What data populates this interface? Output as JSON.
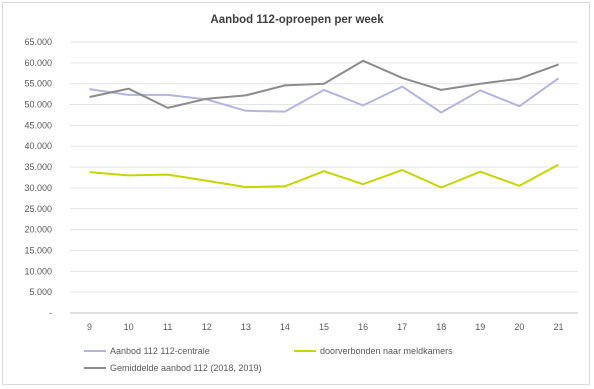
{
  "chart_data": {
    "type": "line",
    "title": "Aanbod 112-oproepen per week",
    "xlabel": "",
    "ylabel": "",
    "categories": [
      "9",
      "10",
      "11",
      "12",
      "13",
      "14",
      "15",
      "16",
      "17",
      "18",
      "19",
      "20",
      "21"
    ],
    "ylim": [
      0,
      65000
    ],
    "y_ticks": [
      "-",
      "5.000",
      "10.000",
      "15.000",
      "20.000",
      "25.000",
      "30.000",
      "35.000",
      "40.000",
      "45.000",
      "50.000",
      "55.000",
      "60.000",
      "65.000"
    ],
    "grid": true,
    "legend_position": "bottom",
    "series": [
      {
        "name": "Aanbod 112 112-centrale",
        "color": "#b4b4e0",
        "values": [
          53700,
          52300,
          52300,
          51200,
          48500,
          48300,
          53500,
          49800,
          54300,
          48100,
          53400,
          49600,
          56300
        ]
      },
      {
        "name": "doorverbonden naar meldkamers",
        "color": "#c8d400",
        "values": [
          33800,
          33000,
          33200,
          31700,
          30200,
          30400,
          34000,
          30900,
          34300,
          30100,
          33900,
          30500,
          35600
        ]
      },
      {
        "name": "Gemiddelde aanbod 112 (2018, 2019)",
        "color": "#8c8c8c",
        "values": [
          51800,
          53800,
          49200,
          51400,
          52200,
          54600,
          55000,
          60500,
          56400,
          53500,
          55000,
          56200,
          59600
        ]
      }
    ]
  }
}
